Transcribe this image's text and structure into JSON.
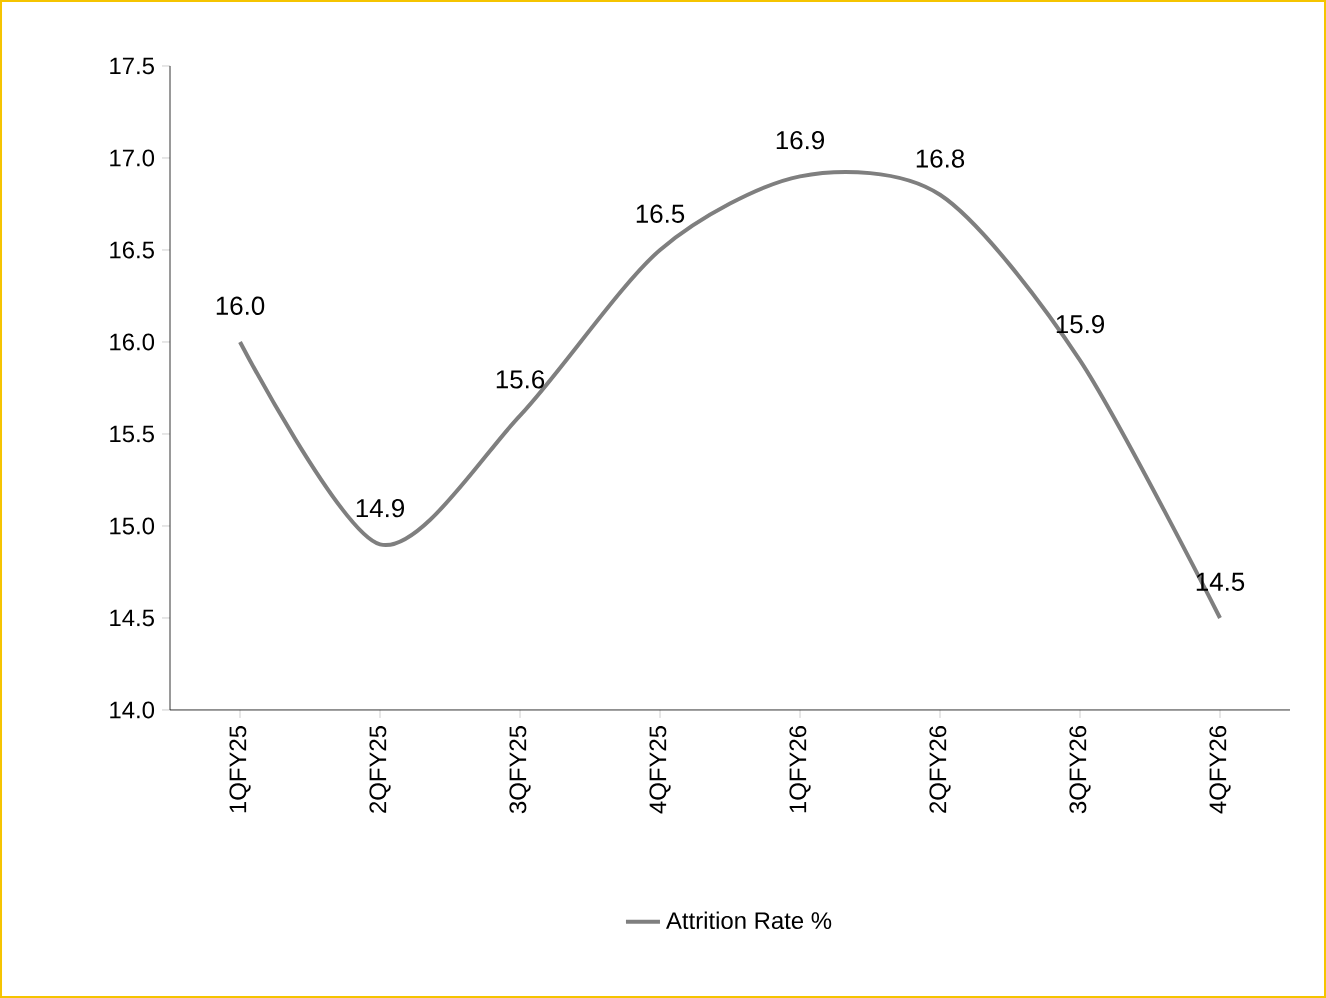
{
  "chart_data": {
    "type": "line",
    "categories": [
      "1QFY25",
      "2QFY25",
      "3QFY25",
      "4QFY25",
      "1QFY26",
      "2QFY26",
      "3QFY26",
      "4QFY26"
    ],
    "series": [
      {
        "name": "Attrition Rate %",
        "color": "#7f7f7f",
        "values": [
          16.0,
          14.9,
          15.6,
          16.5,
          16.9,
          16.8,
          15.9,
          14.5
        ],
        "value_labels": [
          "16.0",
          "14.9",
          "15.6",
          "16.5",
          "16.9",
          "16.8",
          "15.9",
          "14.5"
        ]
      }
    ],
    "ylim": [
      14.0,
      17.5
    ],
    "yticks": [
      {
        "value": 14.0,
        "label": "14.0"
      },
      {
        "value": 14.5,
        "label": "14.5"
      },
      {
        "value": 15.0,
        "label": "15.0"
      },
      {
        "value": 15.5,
        "label": "15.5"
      },
      {
        "value": 16.0,
        "label": "16.0"
      },
      {
        "value": 16.5,
        "label": "16.5"
      },
      {
        "value": 17.0,
        "label": "17.0"
      },
      {
        "value": 17.5,
        "label": "17.5"
      }
    ],
    "grid": false,
    "legend": "bottom",
    "marker": "none",
    "line_style": "solid"
  }
}
